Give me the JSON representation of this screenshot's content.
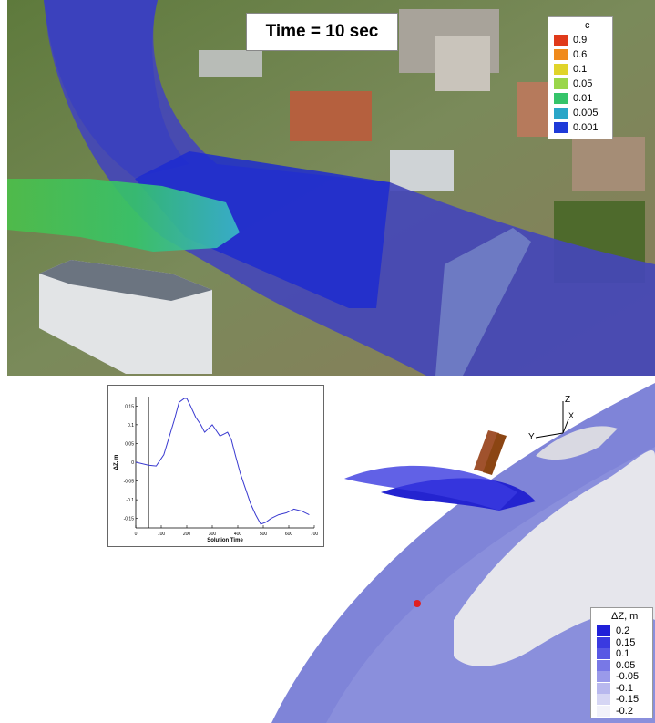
{
  "top": {
    "time_label": "Time = 10 sec",
    "legend": {
      "title": "c",
      "items": [
        {
          "label": "0.9",
          "color": "#e03a1a"
        },
        {
          "label": "0.6",
          "color": "#f08a1c"
        },
        {
          "label": "0.1",
          "color": "#e0d42a"
        },
        {
          "label": "0.05",
          "color": "#9ad64a"
        },
        {
          "label": "0.01",
          "color": "#35c46a"
        },
        {
          "label": "0.005",
          "color": "#2aa6c8"
        },
        {
          "label": "0.001",
          "color": "#1e3ad8"
        }
      ]
    }
  },
  "bottom": {
    "axes_labels": {
      "z": "Z",
      "y": "Y",
      "x": "X"
    },
    "legend": {
      "title": "ΔZ, m",
      "items": [
        {
          "label": "0.2",
          "color": "#2020d8"
        },
        {
          "label": "0.15",
          "color": "#3a3ae0"
        },
        {
          "label": "0.1",
          "color": "#5858e4"
        },
        {
          "label": "0.05",
          "color": "#7878e6"
        },
        {
          "label": "-0.05",
          "color": "#9a9aea"
        },
        {
          "label": "-0.1",
          "color": "#b8b8ee"
        },
        {
          "label": "-0.15",
          "color": "#d6d6f4"
        },
        {
          "label": "-0.2",
          "color": "#f2f2fa"
        }
      ]
    }
  },
  "chart_data": {
    "type": "line",
    "xlabel": "Solution Time",
    "ylabel": "ΔZ, m",
    "xlim": [
      0,
      700
    ],
    "ylim": [
      -0.175,
      0.175
    ],
    "x_ticks": [
      0,
      100,
      200,
      300,
      400,
      500,
      600,
      700
    ],
    "y_ticks": [
      -0.15,
      -0.1,
      -0.05,
      0,
      0.05,
      0.1,
      0.15
    ],
    "x": [
      0,
      20,
      50,
      80,
      110,
      150,
      170,
      190,
      200,
      215,
      235,
      255,
      270,
      285,
      300,
      315,
      330,
      345,
      360,
      375,
      390,
      410,
      430,
      450,
      470,
      490,
      510,
      530,
      560,
      590,
      620,
      650,
      680
    ],
    "y": [
      0.0,
      -0.003,
      -0.008,
      -0.01,
      0.02,
      0.11,
      0.16,
      0.17,
      0.17,
      0.15,
      0.12,
      0.1,
      0.08,
      0.09,
      0.1,
      0.085,
      0.07,
      0.075,
      0.08,
      0.06,
      0.02,
      -0.03,
      -0.07,
      -0.11,
      -0.14,
      -0.165,
      -0.16,
      -0.15,
      -0.14,
      -0.135,
      -0.125,
      -0.13,
      -0.14
    ]
  }
}
